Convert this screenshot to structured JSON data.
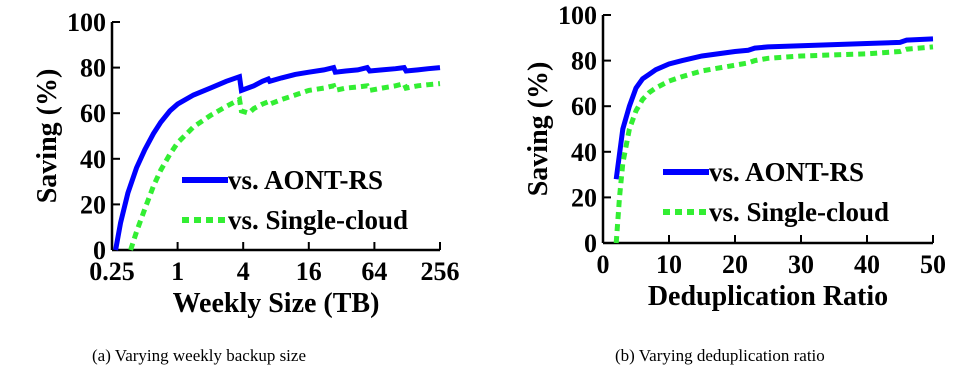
{
  "chart_data": [
    {
      "type": "line",
      "caption": "(a)  Varying weekly backup size",
      "xlabel": "Weekly Size (TB)",
      "ylabel": "Saving (%)",
      "xscale": "log2",
      "xlim": [
        0.25,
        256
      ],
      "ylim": [
        0,
        100
      ],
      "xticks": [
        0.25,
        1,
        4,
        16,
        64,
        256
      ],
      "xtick_labels": [
        "0.25",
        "1",
        "4",
        "16",
        "64",
        "256"
      ],
      "yticks": [
        0,
        20,
        40,
        60,
        80,
        100
      ],
      "ytick_labels": [
        "0",
        "20",
        "40",
        "60",
        "80",
        "100"
      ],
      "legend_position": "lower-right",
      "series": [
        {
          "name": "vs. AONT-RS",
          "color": "#0000ff",
          "style": "solid",
          "points": [
            [
              0.27,
              0
            ],
            [
              0.3,
              12
            ],
            [
              0.35,
              25
            ],
            [
              0.42,
              36
            ],
            [
              0.5,
              44
            ],
            [
              0.6,
              51
            ],
            [
              0.7,
              56
            ],
            [
              0.85,
              61
            ],
            [
              1,
              64
            ],
            [
              1.4,
              68
            ],
            [
              2,
              71
            ],
            [
              2.8,
              74
            ],
            [
              3.7,
              76
            ],
            [
              3.85,
              70
            ],
            [
              5,
              72
            ],
            [
              6,
              74
            ],
            [
              6.8,
              75
            ],
            [
              7,
              74
            ],
            [
              9,
              75.5
            ],
            [
              12,
              77
            ],
            [
              16,
              78
            ],
            [
              22,
              79
            ],
            [
              27,
              80
            ],
            [
              28,
              78
            ],
            [
              35,
              78.5
            ],
            [
              45,
              79
            ],
            [
              55,
              80
            ],
            [
              58,
              78.5
            ],
            [
              75,
              79
            ],
            [
              100,
              79.5
            ],
            [
              120,
              80
            ],
            [
              125,
              78.5
            ],
            [
              160,
              79
            ],
            [
              200,
              79.5
            ],
            [
              256,
              80
            ]
          ]
        },
        {
          "name": "vs. Single-cloud",
          "color": "#33ee33",
          "style": "dashed",
          "points": [
            [
              0.37,
              0
            ],
            [
              0.42,
              8
            ],
            [
              0.5,
              18
            ],
            [
              0.6,
              28
            ],
            [
              0.7,
              35
            ],
            [
              0.85,
              42
            ],
            [
              1,
              47
            ],
            [
              1.4,
              54
            ],
            [
              2,
              59
            ],
            [
              2.8,
              63
            ],
            [
              3.7,
              66
            ],
            [
              3.85,
              61
            ],
            [
              4.5,
              60
            ],
            [
              5,
              62
            ],
            [
              6,
              64
            ],
            [
              6.8,
              65
            ],
            [
              7,
              64
            ],
            [
              9,
              66
            ],
            [
              12,
              68
            ],
            [
              16,
              70
            ],
            [
              22,
              71
            ],
            [
              27,
              72
            ],
            [
              28,
              70
            ],
            [
              35,
              71
            ],
            [
              45,
              71.5
            ],
            [
              55,
              72
            ],
            [
              58,
              70
            ],
            [
              75,
              71
            ],
            [
              100,
              72
            ],
            [
              120,
              73
            ],
            [
              125,
              71
            ],
            [
              160,
              72
            ],
            [
              200,
              72.5
            ],
            [
              256,
              73
            ]
          ]
        }
      ]
    },
    {
      "type": "line",
      "caption": "(b)  Varying deduplication ratio",
      "xlabel": "Deduplication Ratio",
      "ylabel": "Saving (%)",
      "xscale": "linear",
      "xlim": [
        0,
        50
      ],
      "ylim": [
        0,
        100
      ],
      "xticks": [
        0,
        10,
        20,
        30,
        40,
        50
      ],
      "xtick_labels": [
        "0",
        "10",
        "20",
        "30",
        "40",
        "50"
      ],
      "yticks": [
        0,
        20,
        40,
        60,
        80,
        100
      ],
      "ytick_labels": [
        "0",
        "20",
        "40",
        "60",
        "80",
        "100"
      ],
      "legend_position": "lower-right",
      "series": [
        {
          "name": "vs. AONT-RS",
          "color": "#0000ff",
          "style": "solid",
          "points": [
            [
              2,
              28
            ],
            [
              3,
              50
            ],
            [
              4,
              60
            ],
            [
              5,
              68
            ],
            [
              6,
              72
            ],
            [
              7,
              74
            ],
            [
              8,
              76
            ],
            [
              10,
              78.5
            ],
            [
              12,
              80
            ],
            [
              15,
              82
            ],
            [
              20,
              84
            ],
            [
              22,
              84.5
            ],
            [
              23,
              85.5
            ],
            [
              25,
              86
            ],
            [
              30,
              86.5
            ],
            [
              35,
              87
            ],
            [
              40,
              87.5
            ],
            [
              45,
              88
            ],
            [
              46,
              89
            ],
            [
              50,
              89.5
            ]
          ]
        },
        {
          "name": "vs. Single-cloud",
          "color": "#33ee33",
          "style": "dashed",
          "points": [
            [
              2,
              0
            ],
            [
              2.5,
              20
            ],
            [
              3,
              35
            ],
            [
              4,
              50
            ],
            [
              5,
              58
            ],
            [
              6,
              63
            ],
            [
              7,
              66
            ],
            [
              8,
              68
            ],
            [
              10,
              71
            ],
            [
              12,
              73
            ],
            [
              15,
              75.5
            ],
            [
              20,
              78
            ],
            [
              22,
              79
            ],
            [
              23,
              80
            ],
            [
              25,
              81
            ],
            [
              30,
              82
            ],
            [
              35,
              82.5
            ],
            [
              40,
              83
            ],
            [
              45,
              84
            ],
            [
              46,
              85
            ],
            [
              50,
              86
            ]
          ]
        }
      ]
    }
  ]
}
